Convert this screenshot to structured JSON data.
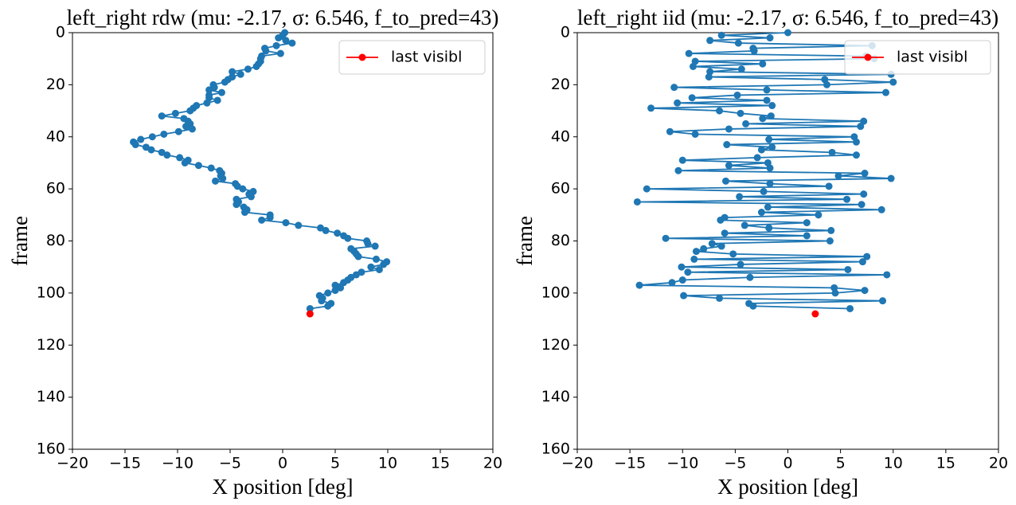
{
  "chart_data": [
    {
      "type": "line",
      "title": "left_right rdw (mu: -2.17, σ: 6.546, f_to_pred=43)",
      "xlabel": "X position [deg]",
      "ylabel": "frame",
      "xlim": [
        -20,
        20
      ],
      "xticks": [
        {
          "value": -20,
          "label": "−20"
        },
        {
          "value": -15,
          "label": "−15"
        },
        {
          "value": -10,
          "label": "−10"
        },
        {
          "value": -5,
          "label": "−5"
        },
        0,
        5,
        10,
        15,
        20
      ],
      "ylim": [
        160,
        0
      ],
      "yticks": [
        0,
        20,
        40,
        60,
        80,
        100,
        120,
        140,
        160
      ],
      "legend": "upper right",
      "series": [
        {
          "color": "#1f77b4",
          "x": [
            0.2,
            0.0,
            -0.4,
            0.3,
            0.9,
            -0.6,
            -1.7,
            -1.6,
            -0.2,
            -2.0,
            -2.1,
            -2.1,
            -2.3,
            -2.5,
            -3.3,
            -4.8,
            -4.0,
            -4.8,
            -5.2,
            -5.5,
            -6.6,
            -6.5,
            -7.0,
            -5.8,
            -7.0,
            -7.0,
            -6.2,
            -7.2,
            -8.2,
            -8.5,
            -8.8,
            -10.2,
            -11.5,
            -9.4,
            -9.0,
            -8.8,
            -9.2,
            -8.6,
            -9.9,
            -11.3,
            -12.4,
            -13.5,
            -14.2,
            -14.0,
            -13.0,
            -12.5,
            -11.5,
            -11.0,
            -9.8,
            -9.0,
            -9.3,
            -8.0,
            -6.8,
            -6.0,
            -5.8,
            -5.9,
            -5.7,
            -6.4,
            -4.5,
            -4.3,
            -3.8,
            -2.8,
            -3.2,
            -3.0,
            -4.4,
            -4.2,
            -4.4,
            -3.7,
            -3.4,
            -3.6,
            -1.2,
            -1.2,
            -2.0,
            0.3,
            1.5,
            3.6,
            4.1,
            5.2,
            5.8,
            6.2,
            8.0,
            8.1,
            8.8,
            6.5,
            6.8,
            7.0,
            7.2,
            8.9,
            9.9,
            9.6,
            8.4,
            9.2,
            7.5,
            7.0,
            6.5,
            6.2,
            5.8,
            5.0,
            5.5,
            5.0,
            4.3,
            3.5,
            3.8,
            3.7,
            4.6,
            4.3,
            2.6
          ],
          "y": [
            0,
            1,
            2,
            3,
            4,
            5,
            6,
            7,
            8,
            9,
            10,
            11,
            12,
            13,
            14,
            15,
            16,
            17,
            18,
            19,
            20,
            21,
            22,
            23,
            24,
            25,
            26,
            27,
            28,
            29,
            30,
            31,
            32,
            33,
            34,
            35,
            36,
            37,
            38,
            39,
            40,
            41,
            42,
            43,
            44,
            45,
            46,
            47,
            48,
            49,
            50,
            51,
            52,
            53,
            54,
            55,
            56,
            57,
            58,
            59,
            60,
            61,
            62,
            63,
            64,
            65,
            66,
            67,
            68,
            69,
            70,
            71,
            72,
            73,
            74,
            75,
            76,
            77,
            78,
            79,
            80,
            81,
            82,
            83,
            84,
            85,
            86,
            87,
            88,
            89,
            90,
            91,
            92,
            93,
            94,
            95,
            96,
            97,
            98,
            99,
            100,
            101,
            102,
            103,
            104,
            105,
            106
          ]
        },
        {
          "name": "last visibl",
          "color": "#ff0000",
          "x": [
            2.6
          ],
          "y": [
            108
          ]
        }
      ]
    },
    {
      "type": "line",
      "title": "left_right iid (mu: -2.17, σ: 6.546, f_to_pred=43)",
      "xlabel": "X position [deg]",
      "ylabel": "frame",
      "xlim": [
        -20,
        20
      ],
      "xticks": [
        {
          "value": -20,
          "label": "−20"
        },
        {
          "value": -15,
          "label": "−15"
        },
        {
          "value": -10,
          "label": "−10"
        },
        {
          "value": -5,
          "label": "−5"
        },
        0,
        5,
        10,
        15,
        20
      ],
      "ylim": [
        160,
        0
      ],
      "yticks": [
        0,
        20,
        40,
        60,
        80,
        100,
        120,
        140,
        160
      ],
      "legend": "upper right",
      "series": [
        {
          "color": "#1f77b4",
          "x": [
            0.0,
            -6.3,
            -1.7,
            -7.4,
            -4.7,
            8.0,
            -3.3,
            -3.2,
            -9.4,
            7.4,
            8.2,
            -8.8,
            -2.4,
            -9.0,
            -4.4,
            -7.4,
            9.8,
            -7.5,
            3.5,
            10.0,
            3.7,
            -10.8,
            -2.0,
            9.3,
            -4.8,
            -9.1,
            -2.0,
            -10.5,
            -1.5,
            -13.0,
            -6.5,
            -4.5,
            -1.6,
            -2.4,
            7.2,
            -4.0,
            6.9,
            -5.6,
            -11.2,
            -8.8,
            6.3,
            -1.8,
            6.5,
            -5.8,
            -1.5,
            -2.5,
            4.2,
            6.5,
            -2.9,
            -10.0,
            -1.9,
            -5.6,
            -1.7,
            -10.4,
            7.3,
            4.8,
            9.8,
            -5.9,
            -1.7,
            3.9,
            -13.4,
            -2.3,
            7.2,
            -4.6,
            5.6,
            -14.3,
            7.0,
            -1.9,
            8.9,
            -2.5,
            2.9,
            -6.0,
            -6.4,
            1.8,
            -4.1,
            -1.8,
            4.1,
            -6.0,
            1.8,
            -11.6,
            4.0,
            -7.2,
            -6.3,
            -8.0,
            -8.7,
            -5.2,
            7.5,
            -8.9,
            7.1,
            -4.5,
            -10.1,
            5.7,
            -9.5,
            9.4,
            -3.6,
            -10.0,
            -11.0,
            -14.1,
            4.4,
            7.3,
            4.5,
            -9.9,
            -6.5,
            9.0,
            -3.7,
            -3.3,
            5.9
          ],
          "y": [
            0,
            1,
            2,
            3,
            4,
            5,
            6,
            7,
            8,
            9,
            10,
            11,
            12,
            13,
            14,
            15,
            16,
            17,
            18,
            19,
            20,
            21,
            22,
            23,
            24,
            25,
            26,
            27,
            28,
            29,
            30,
            31,
            32,
            33,
            34,
            35,
            36,
            37,
            38,
            39,
            40,
            41,
            42,
            43,
            44,
            45,
            46,
            47,
            48,
            49,
            50,
            51,
            52,
            53,
            54,
            55,
            56,
            57,
            58,
            59,
            60,
            61,
            62,
            63,
            64,
            65,
            66,
            67,
            68,
            69,
            70,
            71,
            72,
            73,
            74,
            75,
            76,
            77,
            78,
            79,
            80,
            81,
            82,
            83,
            84,
            85,
            86,
            87,
            88,
            89,
            90,
            91,
            92,
            93,
            94,
            95,
            96,
            97,
            98,
            99,
            100,
            101,
            102,
            103,
            104,
            105,
            106
          ]
        },
        {
          "name": "last visibl",
          "color": "#ff0000",
          "x": [
            2.6
          ],
          "y": [
            108
          ]
        }
      ]
    }
  ]
}
